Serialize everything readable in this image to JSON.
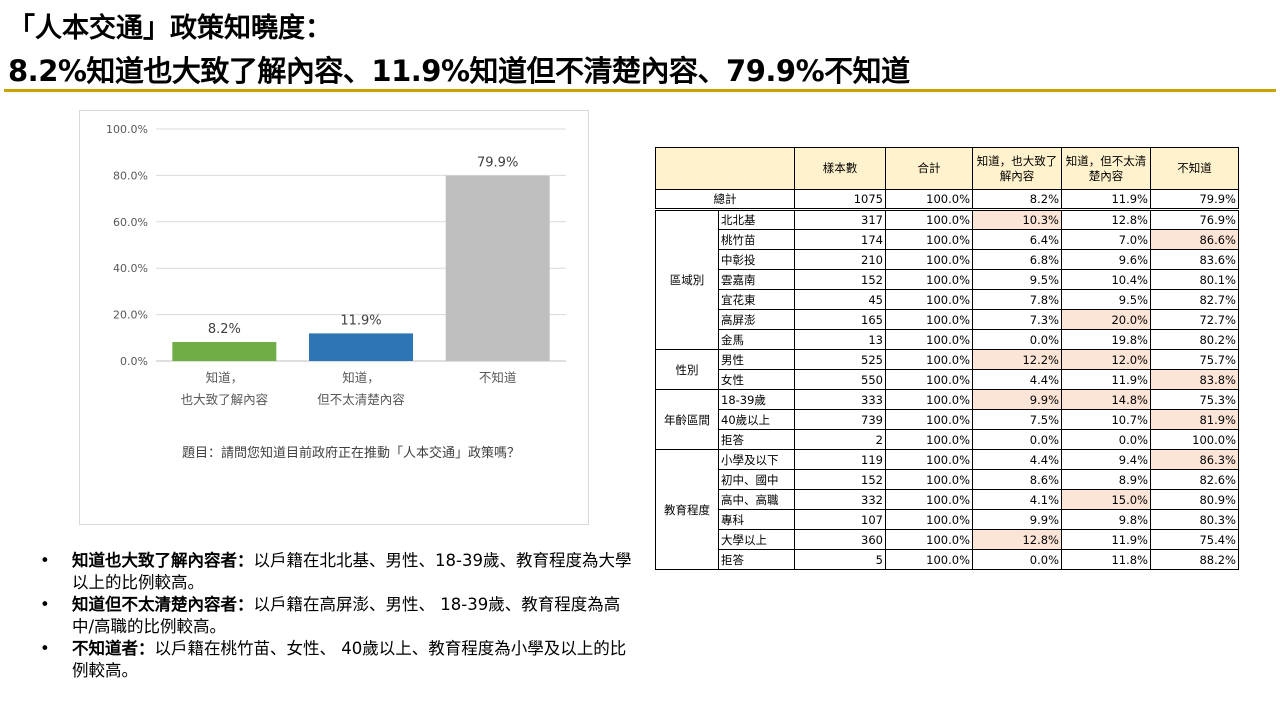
{
  "title": {
    "line1": "「人本交通」政策知曉度：",
    "line2": "8.2%知道也大致了解內容、11.9%知道但不清楚內容、79.9%不知道"
  },
  "chart_data": {
    "type": "bar",
    "categories": [
      "知道，\n也大致了解內容",
      "知道，\n但不太清楚內容",
      "不知道"
    ],
    "category_lines": [
      [
        "知道，",
        "也大致了解內容"
      ],
      [
        "知道，",
        "但不太清楚內容"
      ],
      [
        "不知道"
      ]
    ],
    "values": [
      8.2,
      11.9,
      79.9
    ],
    "data_labels": [
      "8.2%",
      "11.9%",
      "79.9%"
    ],
    "colors": [
      "#70AD47",
      "#2E75B6",
      "#BFBFBF"
    ],
    "yticks": [
      "0.0%",
      "20.0%",
      "40.0%",
      "60.0%",
      "80.0%",
      "100.0%"
    ],
    "ylim": [
      0,
      100
    ],
    "grid": true,
    "caption": "題目：請問您知道目前政府正在推動「人本交通」政策嗎？"
  },
  "table": {
    "headers": [
      "樣本數",
      "合計",
      "知道，也大致了解內容",
      "知道，但不太清楚內容",
      "不知道"
    ],
    "total": {
      "label": "總計",
      "values": [
        "1075",
        "100.0%",
        "8.2%",
        "11.9%",
        "79.9%"
      ]
    },
    "groups": [
      {
        "name": "區域別",
        "rows": [
          {
            "label": "北北基",
            "values": [
              "317",
              "100.0%",
              "10.3%",
              "12.8%",
              "76.9%"
            ],
            "hl": [
              2
            ]
          },
          {
            "label": "桃竹苗",
            "values": [
              "174",
              "100.0%",
              "6.4%",
              "7.0%",
              "86.6%"
            ],
            "hl": [
              4
            ]
          },
          {
            "label": "中彰投",
            "values": [
              "210",
              "100.0%",
              "6.8%",
              "9.6%",
              "83.6%"
            ],
            "hl": []
          },
          {
            "label": "雲嘉南",
            "values": [
              "152",
              "100.0%",
              "9.5%",
              "10.4%",
              "80.1%"
            ],
            "hl": []
          },
          {
            "label": "宜花東",
            "values": [
              "45",
              "100.0%",
              "7.8%",
              "9.5%",
              "82.7%"
            ],
            "hl": []
          },
          {
            "label": "高屏澎",
            "values": [
              "165",
              "100.0%",
              "7.3%",
              "20.0%",
              "72.7%"
            ],
            "hl": [
              3
            ]
          },
          {
            "label": "金馬",
            "values": [
              "13",
              "100.0%",
              "0.0%",
              "19.8%",
              "80.2%"
            ],
            "hl": []
          }
        ]
      },
      {
        "name": "性別",
        "rows": [
          {
            "label": "男性",
            "values": [
              "525",
              "100.0%",
              "12.2%",
              "12.0%",
              "75.7%"
            ],
            "hl": [
              2,
              3
            ]
          },
          {
            "label": "女性",
            "values": [
              "550",
              "100.0%",
              "4.4%",
              "11.9%",
              "83.8%"
            ],
            "hl": [
              4
            ]
          }
        ]
      },
      {
        "name": "年齡區間",
        "rows": [
          {
            "label": "18-39歲",
            "values": [
              "333",
              "100.0%",
              "9.9%",
              "14.8%",
              "75.3%"
            ],
            "hl": [
              2,
              3
            ]
          },
          {
            "label": "40歲以上",
            "values": [
              "739",
              "100.0%",
              "7.5%",
              "10.7%",
              "81.9%"
            ],
            "hl": [
              4
            ]
          },
          {
            "label": "拒答",
            "values": [
              "2",
              "100.0%",
              "0.0%",
              "0.0%",
              "100.0%"
            ],
            "hl": []
          }
        ]
      },
      {
        "name": "教育程度",
        "rows": [
          {
            "label": "小學及以下",
            "values": [
              "119",
              "100.0%",
              "4.4%",
              "9.4%",
              "86.3%"
            ],
            "hl": [
              4
            ]
          },
          {
            "label": "初中、國中",
            "values": [
              "152",
              "100.0%",
              "8.6%",
              "8.9%",
              "82.6%"
            ],
            "hl": []
          },
          {
            "label": "高中、高職",
            "values": [
              "332",
              "100.0%",
              "4.1%",
              "15.0%",
              "80.9%"
            ],
            "hl": [
              3
            ]
          },
          {
            "label": "專科",
            "values": [
              "107",
              "100.0%",
              "9.9%",
              "9.8%",
              "80.3%"
            ],
            "hl": []
          },
          {
            "label": "大學以上",
            "values": [
              "360",
              "100.0%",
              "12.8%",
              "11.9%",
              "75.4%"
            ],
            "hl": [
              2
            ]
          },
          {
            "label": "拒答",
            "values": [
              "5",
              "100.0%",
              "0.0%",
              "11.8%",
              "88.2%"
            ],
            "hl": []
          }
        ]
      }
    ]
  },
  "bullets": [
    {
      "bold": "知道也大致了解內容者：",
      "text": "以戶籍在北北基、男性、18-39歲、教育程度為大學以上的比例較高。"
    },
    {
      "bold": "知道但不太清楚內容者：",
      "text": "以戶籍在高屏澎、男性、 18-39歲、教育程度為高中/高職的比例較高。"
    },
    {
      "bold": "不知道者：",
      "text": "以戶籍在桃竹苗、女性、 40歲以上、教育程度為小學及以上的比例較高。"
    }
  ]
}
